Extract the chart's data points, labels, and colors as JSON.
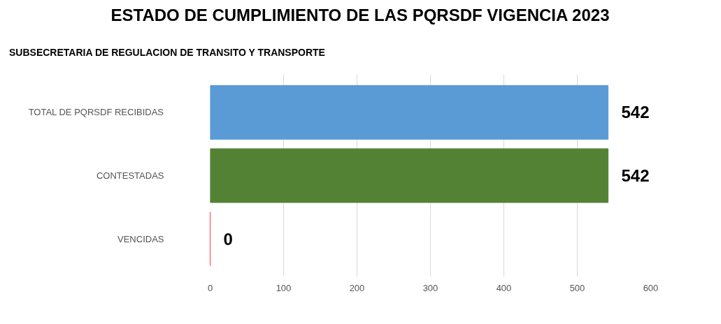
{
  "chart_data": {
    "type": "bar",
    "orientation": "horizontal",
    "title": "ESTADO DE  CUMPLIMIENTO  DE LAS PQRSDF VIGENCIA 2023",
    "subtitle": "SUBSECRETARIA DE REGULACION DE TRANSITO Y TRANSPORTE",
    "categories": [
      "TOTAL DE PQRSDF RECIBIDAS",
      "CONTESTADAS",
      "VENCIDAS"
    ],
    "values": [
      542,
      542,
      0
    ],
    "colors": [
      "#5b9bd5",
      "#548235",
      "#ff0000"
    ],
    "xlim": [
      0,
      600
    ],
    "xticks": [
      0,
      100,
      200,
      300,
      400,
      500,
      600
    ],
    "grid": "x",
    "data_labels": true
  }
}
